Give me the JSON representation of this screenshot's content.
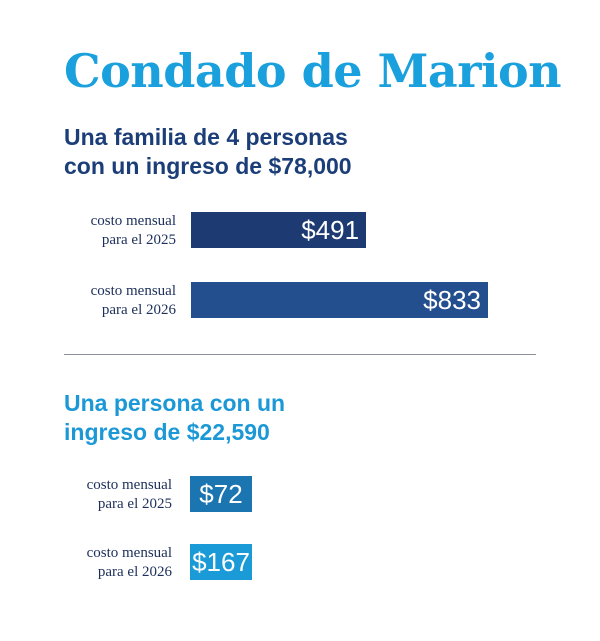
{
  "title": "Condado de Marion",
  "colors": {
    "title": "#1aa0dc",
    "family_2025": "#1d3b72",
    "family_2026": "#234f8f",
    "person_2025": "#1a75b0",
    "person_2026": "#1a9ad6"
  },
  "chart_data": [
    {
      "type": "bar",
      "orientation": "horizontal",
      "subtitle": [
        "Una familia de 4 personas",
        "con un ingreso de $78,000"
      ],
      "categories": [
        [
          "costo mensual",
          "para el 2025"
        ],
        [
          "costo mensual",
          "para el 2026"
        ]
      ],
      "values": [
        491,
        833
      ],
      "value_labels": [
        "$491",
        "$833"
      ]
    },
    {
      "type": "bar",
      "orientation": "horizontal",
      "subtitle": [
        "Una persona con un",
        "ingreso de $22,590"
      ],
      "categories": [
        [
          "costo mensual",
          "para el 2025"
        ],
        [
          "costo mensual",
          "para el 2026"
        ]
      ],
      "values": [
        72,
        167
      ],
      "value_labels": [
        "$72",
        "$167"
      ]
    }
  ]
}
